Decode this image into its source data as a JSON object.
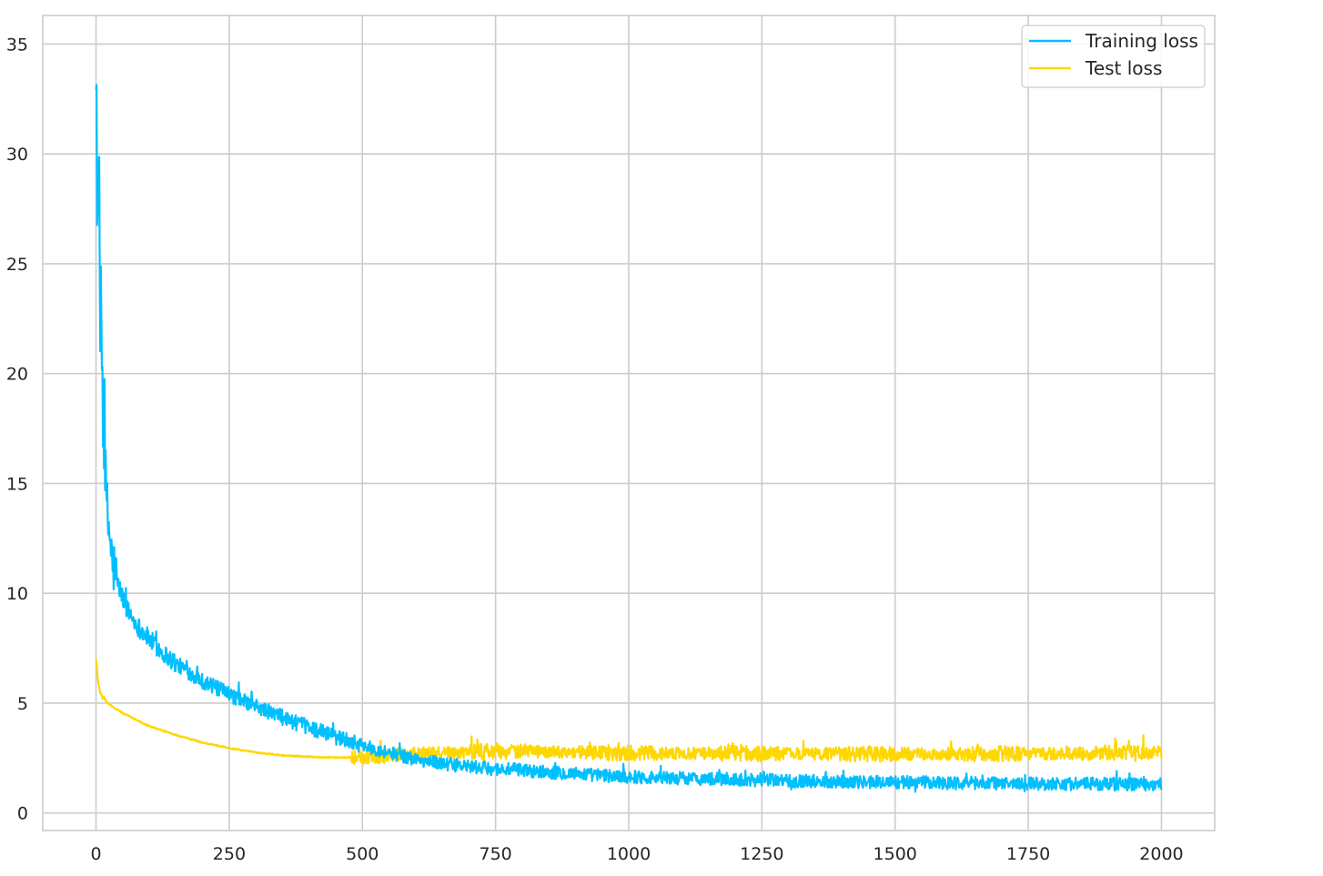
{
  "chart_data": {
    "type": "line",
    "title": "",
    "xlabel": "",
    "ylabel": "",
    "xlim": [
      -100,
      2100
    ],
    "ylim": [
      -0.8,
      36.3
    ],
    "xticks": [
      0,
      250,
      500,
      750,
      1000,
      1250,
      1500,
      1750,
      2000
    ],
    "xtick_labels": [
      "0",
      "250",
      "500",
      "750",
      "1000",
      "1250",
      "1500",
      "1750",
      "2000"
    ],
    "yticks": [
      0,
      5,
      10,
      15,
      20,
      25,
      30,
      35
    ],
    "ytick_labels": [
      "0",
      "5",
      "10",
      "15",
      "20",
      "25",
      "30",
      "35"
    ],
    "grid": true,
    "legend_position": "top-right",
    "x_range": [
      0,
      2000
    ],
    "series": [
      {
        "name": "Training loss",
        "color": "#00bfff",
        "x": [
          0,
          2,
          4,
          6,
          8,
          10,
          12,
          15,
          20,
          25,
          30,
          40,
          50,
          60,
          75,
          100,
          125,
          150,
          175,
          200,
          225,
          250,
          275,
          300,
          325,
          350,
          375,
          400,
          425,
          450,
          475,
          500,
          550,
          600,
          650,
          700,
          750,
          800,
          850,
          900,
          950,
          1000,
          1100,
          1200,
          1300,
          1400,
          1500,
          1600,
          1700,
          1800,
          1900,
          2000
        ],
        "values": [
          34.7,
          29.5,
          25.0,
          28.5,
          21.5,
          23.0,
          19.5,
          16.5,
          13.8,
          12.8,
          11.5,
          10.5,
          9.8,
          9.2,
          8.6,
          7.9,
          7.3,
          6.8,
          6.4,
          6.0,
          5.7,
          5.4,
          5.1,
          4.85,
          4.6,
          4.35,
          4.1,
          3.9,
          3.7,
          3.5,
          3.3,
          3.05,
          2.75,
          2.45,
          2.25,
          2.1,
          2.0,
          1.95,
          1.85,
          1.8,
          1.7,
          1.65,
          1.58,
          1.52,
          1.47,
          1.43,
          1.4,
          1.37,
          1.35,
          1.33,
          1.32,
          1.3
        ],
        "noise": 0.3
      },
      {
        "name": "Test loss",
        "color": "#ffd700",
        "x": [
          0,
          3,
          6,
          10,
          15,
          20,
          30,
          50,
          75,
          100,
          150,
          200,
          250,
          300,
          350,
          400,
          450,
          500,
          550,
          600,
          650,
          700,
          750,
          800,
          900,
          1000,
          1200,
          1400,
          1600,
          1800,
          2000
        ],
        "values": [
          7.0,
          6.2,
          5.7,
          5.4,
          5.2,
          5.05,
          4.85,
          4.55,
          4.25,
          3.95,
          3.55,
          3.2,
          2.95,
          2.75,
          2.62,
          2.55,
          2.52,
          2.55,
          2.62,
          2.7,
          2.75,
          2.78,
          2.8,
          2.8,
          2.77,
          2.72,
          2.7,
          2.68,
          2.68,
          2.7,
          2.75
        ],
        "noise": 0.32
      }
    ]
  }
}
